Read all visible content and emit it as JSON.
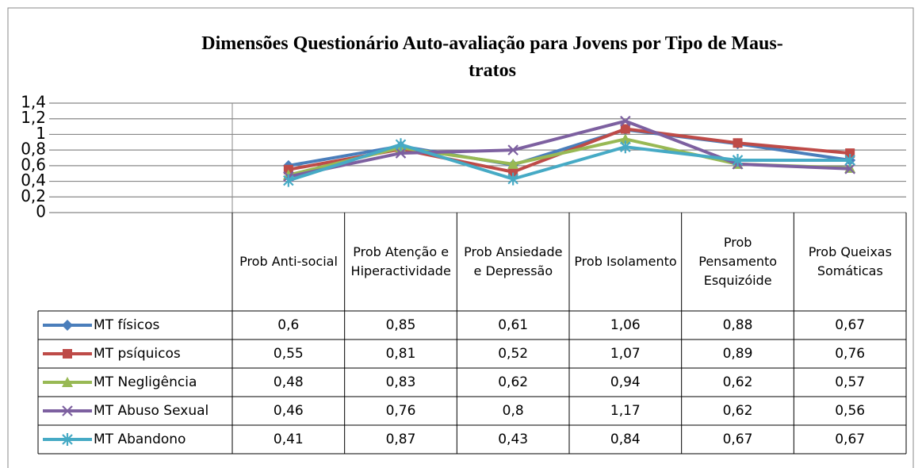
{
  "chart_data": {
    "type": "line",
    "title": "Dimensões Questionário Auto-avaliação para Jovens por Tipo de Maus-tratos",
    "categories": [
      "Prob Anti-social",
      "Prob Atenção e Hiperactividade",
      "Prob Ansiedade e Depressão",
      "Prob Isolamento",
      "Prob Pensamento Esquizóide",
      "Prob Queixas Somáticas"
    ],
    "ylim": [
      0,
      1.4
    ],
    "yticks": [
      0,
      {
        "value": 0.2,
        "label": "0,2"
      },
      {
        "value": 0.4,
        "label": "0,4"
      },
      {
        "value": 0.6,
        "label": "0,6"
      },
      {
        "value": 0.8,
        "label": "0,8"
      },
      1,
      {
        "value": 1.2,
        "label": "1,2"
      },
      {
        "value": 1.4,
        "label": "1,4"
      }
    ],
    "grid": true,
    "series": [
      {
        "name": "MT físicos",
        "color": "#4a7ebb",
        "marker": "diamond",
        "values": [
          0.6,
          0.85,
          0.61,
          1.06,
          0.88,
          0.67
        ],
        "value_labels": [
          "0,6",
          "0,85",
          "0,61",
          "1,06",
          "0,88",
          "0,67"
        ]
      },
      {
        "name": "MT psíquicos",
        "color": "#be4b48",
        "marker": "square",
        "values": [
          0.55,
          0.81,
          0.52,
          1.07,
          0.89,
          0.76
        ],
        "value_labels": [
          "0,55",
          "0,81",
          "0,52",
          "1,07",
          "0,89",
          "0,76"
        ]
      },
      {
        "name": "MT Negligência",
        "color": "#98b954",
        "marker": "triangle",
        "values": [
          0.48,
          0.83,
          0.62,
          0.94,
          0.62,
          0.57
        ],
        "value_labels": [
          "0,48",
          "0,83",
          "0,62",
          "0,94",
          "0,62",
          "0,57"
        ]
      },
      {
        "name": "MT Abuso Sexual",
        "color": "#7d60a0",
        "marker": "x",
        "values": [
          0.46,
          0.76,
          0.8,
          1.17,
          0.62,
          0.56
        ],
        "value_labels": [
          "0,46",
          "0,76",
          "0,8",
          "1,17",
          "0,62",
          "0,56"
        ]
      },
      {
        "name": "MT Abandono",
        "color": "#46aac5",
        "marker": "star",
        "values": [
          0.41,
          0.87,
          0.43,
          0.84,
          0.67,
          0.67
        ],
        "value_labels": [
          "0,41",
          "0,87",
          "0,43",
          "0,84",
          "0,67",
          "0,67"
        ]
      }
    ]
  }
}
